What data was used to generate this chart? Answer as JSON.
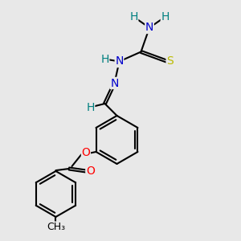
{
  "background_color": "#e8e8e8",
  "bond_color": "#000000",
  "atom_colors": {
    "N": "#0000cc",
    "O": "#ff0000",
    "S": "#bbbb00",
    "H": "#008080",
    "C": "#000000"
  },
  "figsize": [
    3.0,
    3.0
  ],
  "dpi": 100,
  "xlim": [
    0,
    10
  ],
  "ylim": [
    0,
    10
  ]
}
